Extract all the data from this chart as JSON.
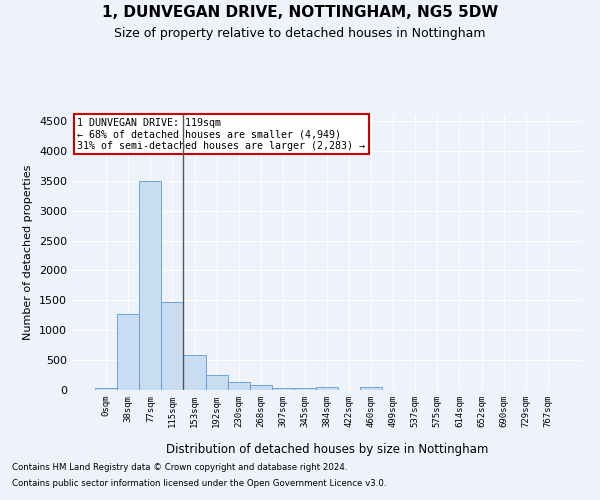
{
  "title": "1, DUNVEGAN DRIVE, NOTTINGHAM, NG5 5DW",
  "subtitle": "Size of property relative to detached houses in Nottingham",
  "xlabel": "Distribution of detached houses by size in Nottingham",
  "ylabel": "Number of detached properties",
  "footnote1": "Contains HM Land Registry data © Crown copyright and database right 2024.",
  "footnote2": "Contains public sector information licensed under the Open Government Licence v3.0.",
  "annotation_line1": "1 DUNVEGAN DRIVE: 119sqm",
  "annotation_line2": "← 68% of detached houses are smaller (4,949)",
  "annotation_line3": "31% of semi-detached houses are larger (2,283) →",
  "bar_labels": [
    "0sqm",
    "38sqm",
    "77sqm",
    "115sqm",
    "153sqm",
    "192sqm",
    "230sqm",
    "268sqm",
    "307sqm",
    "345sqm",
    "384sqm",
    "422sqm",
    "460sqm",
    "499sqm",
    "537sqm",
    "575sqm",
    "614sqm",
    "652sqm",
    "690sqm",
    "729sqm",
    "767sqm"
  ],
  "bar_values": [
    30,
    1270,
    3500,
    1480,
    580,
    250,
    140,
    80,
    40,
    30,
    50,
    0,
    50,
    0,
    0,
    0,
    0,
    0,
    0,
    0,
    0
  ],
  "bar_color": "#c9ddf2",
  "bar_edge_color": "#5b9bd5",
  "vline_color": "#555555",
  "ylim": [
    0,
    4600
  ],
  "yticks": [
    0,
    500,
    1000,
    1500,
    2000,
    2500,
    3000,
    3500,
    4000,
    4500
  ],
  "background_color": "#eef2fa",
  "plot_background": "#eef2fa",
  "grid_color": "#ffffff",
  "title_fontsize": 11,
  "subtitle_fontsize": 9,
  "annotation_box_color": "#ffffff",
  "annotation_border_color": "#cc0000"
}
